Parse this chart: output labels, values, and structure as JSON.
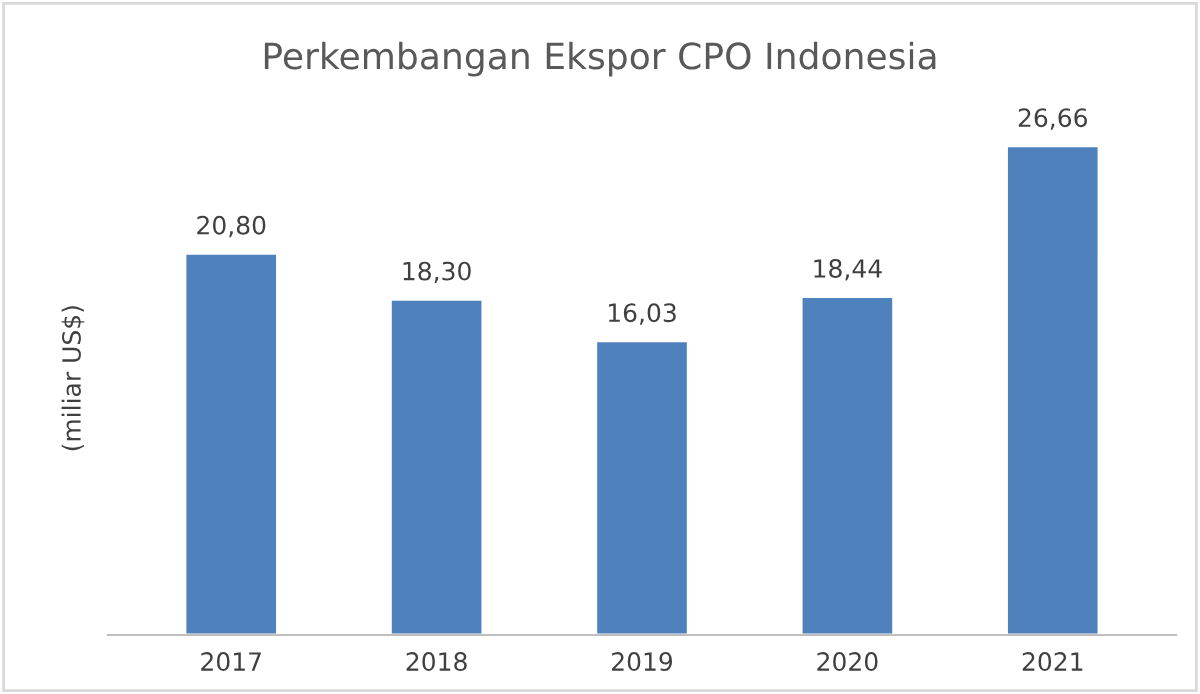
{
  "chart_data": {
    "type": "bar",
    "title": "Perkembangan Ekspor CPO Indonesia",
    "ylabel": "(miliar US$)",
    "categories": [
      "2017",
      "2018",
      "2019",
      "2020",
      "2021"
    ],
    "values": [
      20.8,
      18.3,
      16.03,
      18.44,
      26.66
    ],
    "value_labels": [
      "20,80",
      "18,30",
      "16,03",
      "18,44",
      "26,66"
    ],
    "color": "#4f81bd",
    "grid": false,
    "legend": false
  }
}
